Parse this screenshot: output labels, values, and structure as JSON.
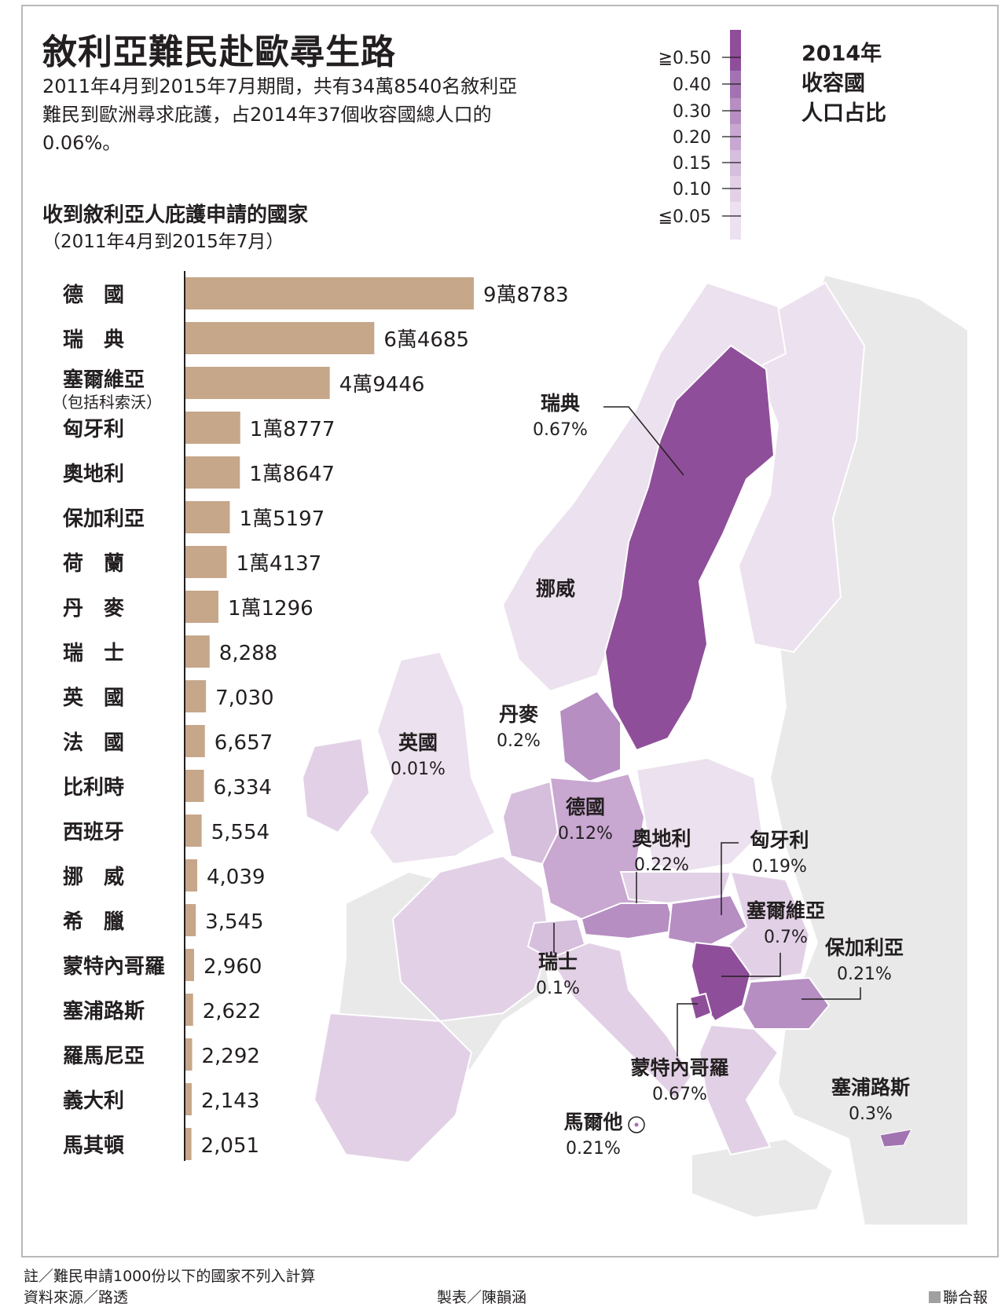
{
  "header": {
    "title": "敘利亞難民赴歐尋生路",
    "intro": "2011年4月到2015年7月期間，共有34萬8540名敘利亞難民到歐洲尋求庇護，占2014年37個收容國總人口的0.06%。"
  },
  "bar_chart": {
    "heading": "收到敘利亞人庇護申請的國家",
    "period": "（2011年4月到2015年7月）"
  },
  "legend": {
    "title_lines": [
      "2014年",
      "收容國",
      "人口占比"
    ]
  },
  "colors": {
    "bar": "#c6a78a",
    "scale": [
      "#ece1ee",
      "#e2d1e6",
      "#d6bedd",
      "#c8a7d1",
      "#b68ec2",
      "#a273b1",
      "#8f4e9a"
    ],
    "land_other": "#e9e9e9",
    "sea": "#ffffff"
  },
  "chart_data": [
    {
      "type": "bar",
      "orientation": "horizontal",
      "categories": [
        "德　國",
        "瑞　典",
        "塞爾維亞",
        "匈牙利",
        "奧地利",
        "保加利亞",
        "荷　蘭",
        "丹　麥",
        "瑞　士",
        "英　國",
        "法　國",
        "比利時",
        "西班牙",
        "挪　威",
        "希　臘",
        "蒙特內哥羅",
        "塞浦路斯",
        "羅馬尼亞",
        "義大利",
        "馬其頓"
      ],
      "category_notes": {
        "塞爾維亞": "（包括科索沃）"
      },
      "values": [
        98783,
        64685,
        49446,
        18777,
        18647,
        15197,
        14137,
        11296,
        8288,
        7030,
        6657,
        6334,
        5554,
        4039,
        3545,
        2960,
        2622,
        2292,
        2143,
        2051
      ],
      "value_labels": [
        "9萬8783",
        "6萬4685",
        "4萬9446",
        "1萬8777",
        "1萬8647",
        "1萬5197",
        "1萬4137",
        "1萬1296",
        "8,288",
        "7,030",
        "6,657",
        "6,334",
        "5,554",
        "4,039",
        "3,545",
        "2,960",
        "2,622",
        "2,292",
        "2,143",
        "2,051"
      ]
    },
    {
      "type": "choropleth",
      "legend_ticks": [
        "≧0.50",
        "0.40",
        "0.30",
        "0.20",
        "0.15",
        "0.10",
        "≦0.05"
      ],
      "regions": [
        {
          "name": "瑞典",
          "value": "0.67%"
        },
        {
          "name": "挪威",
          "value": ""
        },
        {
          "name": "丹麥",
          "value": "0.2%"
        },
        {
          "name": "英國",
          "value": "0.01%"
        },
        {
          "name": "德國",
          "value": "0.12%"
        },
        {
          "name": "奧地利",
          "value": "0.22%"
        },
        {
          "name": "匈牙利",
          "value": "0.19%"
        },
        {
          "name": "塞爾維亞",
          "value": "0.7%"
        },
        {
          "name": "保加利亞",
          "value": "0.21%"
        },
        {
          "name": "瑞士",
          "value": "0.1%"
        },
        {
          "name": "蒙特內哥羅",
          "value": "0.67%"
        },
        {
          "name": "塞浦路斯",
          "value": "0.3%"
        },
        {
          "name": "馬爾他",
          "value": "0.21%"
        }
      ]
    }
  ],
  "footer": {
    "note": "註／難民申請1000份以下的國家不列入計算",
    "source": "資料來源／路透",
    "maker": "製表／陳韻涵",
    "brand": "聯合報"
  }
}
